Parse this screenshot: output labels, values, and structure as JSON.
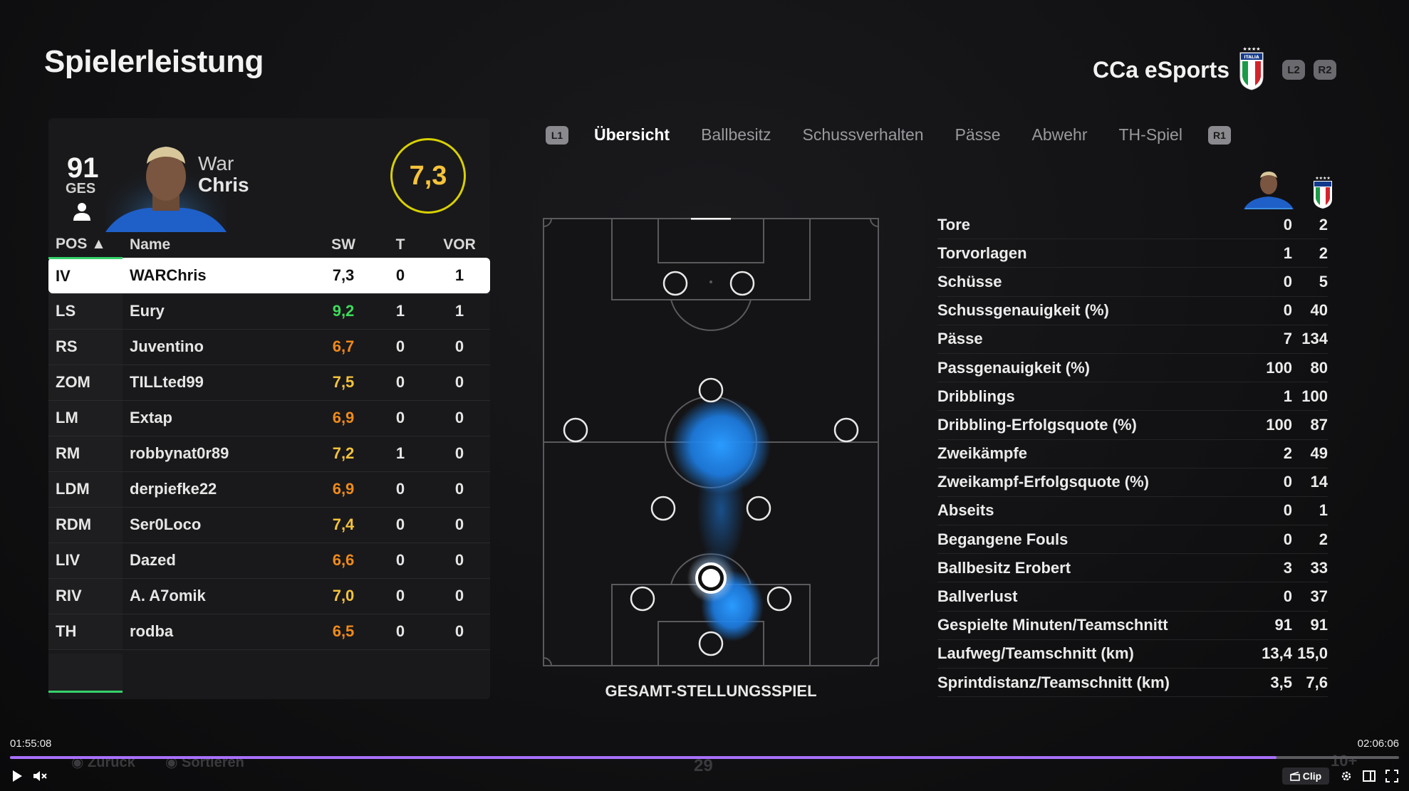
{
  "header": {
    "title": "Spielerleistung",
    "team": "CCa eSports",
    "btn_l2": "L2",
    "btn_r2": "R2"
  },
  "player": {
    "overall": "91",
    "overall_label": "GES",
    "name_line1": "War",
    "name_line2": "Chris",
    "rating": "7,3"
  },
  "roster": {
    "columns": [
      "POS ▲",
      "Name",
      "SW",
      "T",
      "VOR"
    ],
    "rows": [
      {
        "pos": "IV",
        "name": "WARChris",
        "sw": "7,3",
        "t": "0",
        "vor": "1",
        "color": "#111111"
      },
      {
        "pos": "LS",
        "name": "Eury",
        "sw": "9,2",
        "t": "1",
        "vor": "1",
        "color": "#3ddc5a"
      },
      {
        "pos": "RS",
        "name": "Juventino",
        "sw": "6,7",
        "t": "0",
        "vor": "0",
        "color": "#f08a1a"
      },
      {
        "pos": "ZOM",
        "name": "TILLted99",
        "sw": "7,5",
        "t": "0",
        "vor": "0",
        "color": "#f5c33b"
      },
      {
        "pos": "LM",
        "name": "Extap",
        "sw": "6,9",
        "t": "0",
        "vor": "0",
        "color": "#f08a1a"
      },
      {
        "pos": "RM",
        "name": "robbynat0r89",
        "sw": "7,2",
        "t": "1",
        "vor": "0",
        "color": "#f5c33b"
      },
      {
        "pos": "LDM",
        "name": "derpiefke22",
        "sw": "6,9",
        "t": "0",
        "vor": "0",
        "color": "#f08a1a"
      },
      {
        "pos": "RDM",
        "name": "Ser0Loco",
        "sw": "7,4",
        "t": "0",
        "vor": "0",
        "color": "#f5c33b"
      },
      {
        "pos": "LIV",
        "name": "Dazed",
        "sw": "6,6",
        "t": "0",
        "vor": "0",
        "color": "#f08a1a"
      },
      {
        "pos": "RIV",
        "name": "A. A7omik",
        "sw": "7,0",
        "t": "0",
        "vor": "0",
        "color": "#f5c33b"
      },
      {
        "pos": "TH",
        "name": "rodba",
        "sw": "6,5",
        "t": "0",
        "vor": "0",
        "color": "#f08a1a"
      }
    ]
  },
  "tabs": {
    "left_chip": "L1",
    "right_chip": "R1",
    "items": [
      "Übersicht",
      "Ballbesitz",
      "Schussverhalten",
      "Pässe",
      "Abwehr",
      "TH-Spiel"
    ]
  },
  "pitch": {
    "caption": "GESAMT-STELLUNGSSPIEL"
  },
  "stats": [
    {
      "label": "Tore",
      "player": "0",
      "team": "2"
    },
    {
      "label": "Torvorlagen",
      "player": "1",
      "team": "2"
    },
    {
      "label": "Schüsse",
      "player": "0",
      "team": "5"
    },
    {
      "label": "Schussgenauigkeit (%)",
      "player": "0",
      "team": "40"
    },
    {
      "label": "Pässe",
      "player": "7",
      "team": "134"
    },
    {
      "label": "Passgenauigkeit (%)",
      "player": "100",
      "team": "80"
    },
    {
      "label": "Dribblings",
      "player": "1",
      "team": "100"
    },
    {
      "label": "Dribbling-Erfolgsquote (%)",
      "player": "100",
      "team": "87"
    },
    {
      "label": "Zweikämpfe",
      "player": "2",
      "team": "49"
    },
    {
      "label": "Zweikampf-Erfolgsquote (%)",
      "player": "0",
      "team": "14"
    },
    {
      "label": "Abseits",
      "player": "0",
      "team": "1"
    },
    {
      "label": "Begangene Fouls",
      "player": "0",
      "team": "2"
    },
    {
      "label": "Ballbesitz Erobert",
      "player": "3",
      "team": "33"
    },
    {
      "label": "Ballverlust",
      "player": "0",
      "team": "37"
    },
    {
      "label": "Gespielte Minuten/Teamschnitt",
      "player": "91",
      "team": "91"
    },
    {
      "label": "Laufweg/Teamschnitt (km)",
      "player": "13,4",
      "team": "15,0"
    },
    {
      "label": "Sprintdistanz/Teamschnitt (km)",
      "player": "3,5",
      "team": "7,6"
    }
  ],
  "player_bar": {
    "time_current": "01:55:08",
    "time_total": "02:06:06",
    "progress": 0.912,
    "ghost_back": "Zurück",
    "ghost_sort": "Sortieren",
    "ghost_center": "29",
    "ghost_right": "10+",
    "clip_label": "Clip"
  },
  "colors": {
    "accent_green": "#35d36b",
    "rating_ring": "#d8d000",
    "heat_blue": "#1e90ff",
    "progress": "#a970ff"
  }
}
